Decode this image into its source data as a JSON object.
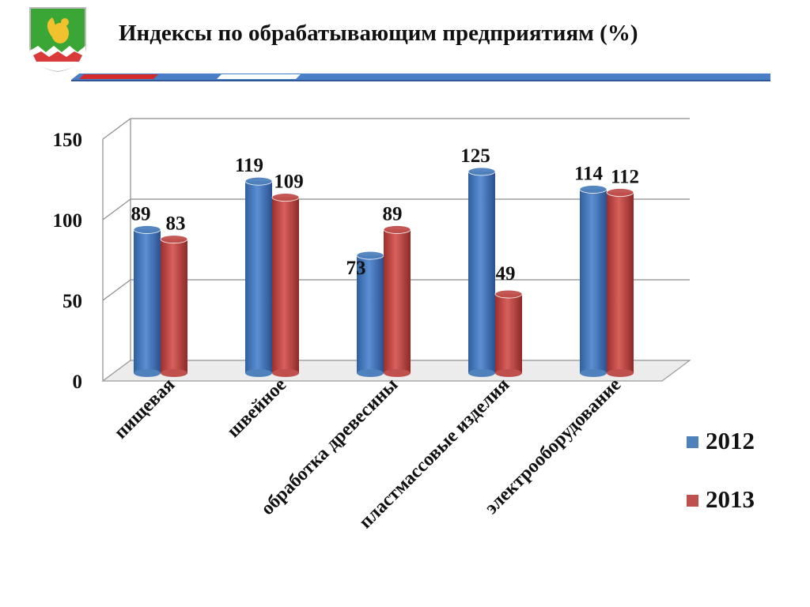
{
  "header": {
    "title": "Индексы по обрабатывающим предприятиям (%)"
  },
  "colors": {
    "series_2012": "#4f81bd",
    "series_2013": "#c0504d",
    "ribbon_blue": "#4a7ec7",
    "ribbon_red": "#d42a2a"
  },
  "chart_data": {
    "type": "bar",
    "title": "Индексы по обрабатывающим предприятиям (%)",
    "xlabel": "",
    "ylabel": "",
    "ylim": [
      0,
      150
    ],
    "yticks": [
      "0",
      "50",
      "100",
      "150"
    ],
    "grid": true,
    "legend": "right",
    "categories": [
      "пищевая",
      "швейное",
      "обработка древесины",
      "пластмассовые изделия",
      "электрооборудование"
    ],
    "series": [
      {
        "name": "2012",
        "values": [
          89,
          119,
          73,
          125,
          114
        ]
      },
      {
        "name": "2013",
        "values": [
          83,
          109,
          89,
          49,
          112
        ]
      }
    ]
  }
}
